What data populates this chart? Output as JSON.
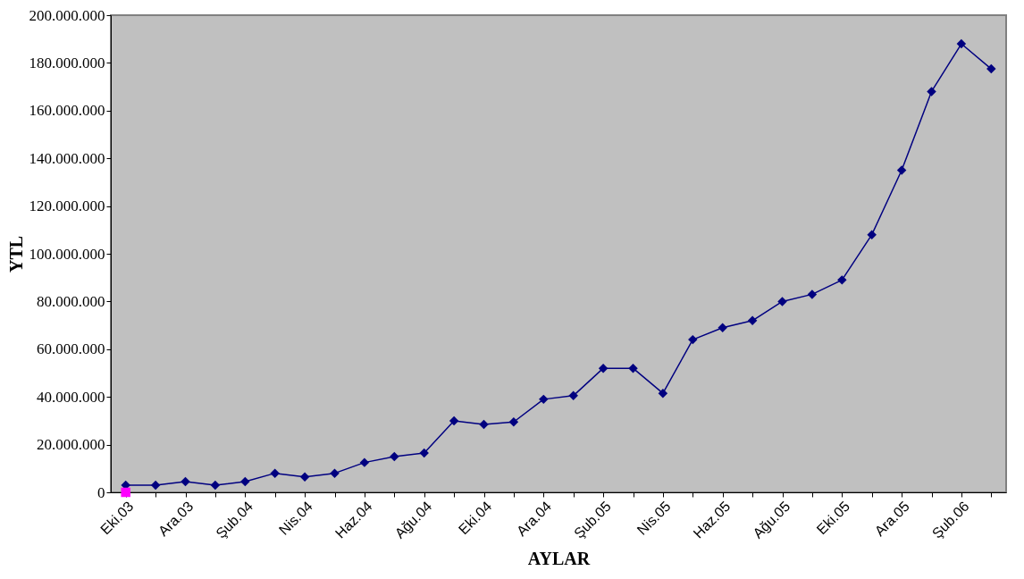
{
  "chart_data": {
    "type": "line",
    "xlabel": "AYLAR",
    "ylabel": "YTL",
    "categories": [
      "Eki.03",
      null,
      "Ara.03",
      null,
      "Şub.04",
      null,
      "Nis.04",
      null,
      "Haz.04",
      null,
      "Ağu.04",
      null,
      "Eki.04",
      null,
      "Ara.04",
      null,
      "Şub.05",
      null,
      "Nis.05",
      null,
      "Haz.05",
      null,
      "Ağu.05",
      null,
      "Eki.05",
      null,
      "Ara.05",
      null,
      "Şub.06",
      null
    ],
    "series": [
      {
        "color": "#000080",
        "marker": "diamond",
        "values": [
          3000000,
          3000000,
          4500000,
          3000000,
          4500000,
          8000000,
          6500000,
          8000000,
          12500000,
          15000000,
          16500000,
          30000000,
          28500000,
          29500000,
          39000000,
          40500000,
          52000000,
          52000000,
          41500000,
          64000000,
          69000000,
          72000000,
          80000000,
          83000000,
          89000000,
          108000000,
          135000000,
          168000000,
          188000000,
          177500000
        ]
      },
      {
        "type": "scatter",
        "color": "#ff00ff",
        "marker": "square",
        "values": [
          0,
          null,
          null,
          null,
          null,
          null,
          null,
          null,
          null,
          null,
          null,
          null,
          null,
          null,
          null,
          null,
          null,
          null,
          null,
          null,
          null,
          null,
          null,
          null,
          null,
          null,
          null,
          null,
          null,
          null
        ]
      }
    ],
    "ylim": [
      0,
      200000000
    ],
    "yticks": [
      {
        "value": 0,
        "label": "0"
      },
      {
        "value": 20000000,
        "label": "20.000.000"
      },
      {
        "value": 40000000,
        "label": "40.000.000"
      },
      {
        "value": 60000000,
        "label": "60.000.000"
      },
      {
        "value": 80000000,
        "label": "80.000.000"
      },
      {
        "value": 100000000,
        "label": "100.000.000"
      },
      {
        "value": 120000000,
        "label": "120.000.000"
      },
      {
        "value": 140000000,
        "label": "140.000.000"
      },
      {
        "value": 160000000,
        "label": "160.000.000"
      },
      {
        "value": 180000000,
        "label": "180.000.000"
      },
      {
        "value": 200000000,
        "label": "200.000.000"
      }
    ],
    "grid": false
  }
}
